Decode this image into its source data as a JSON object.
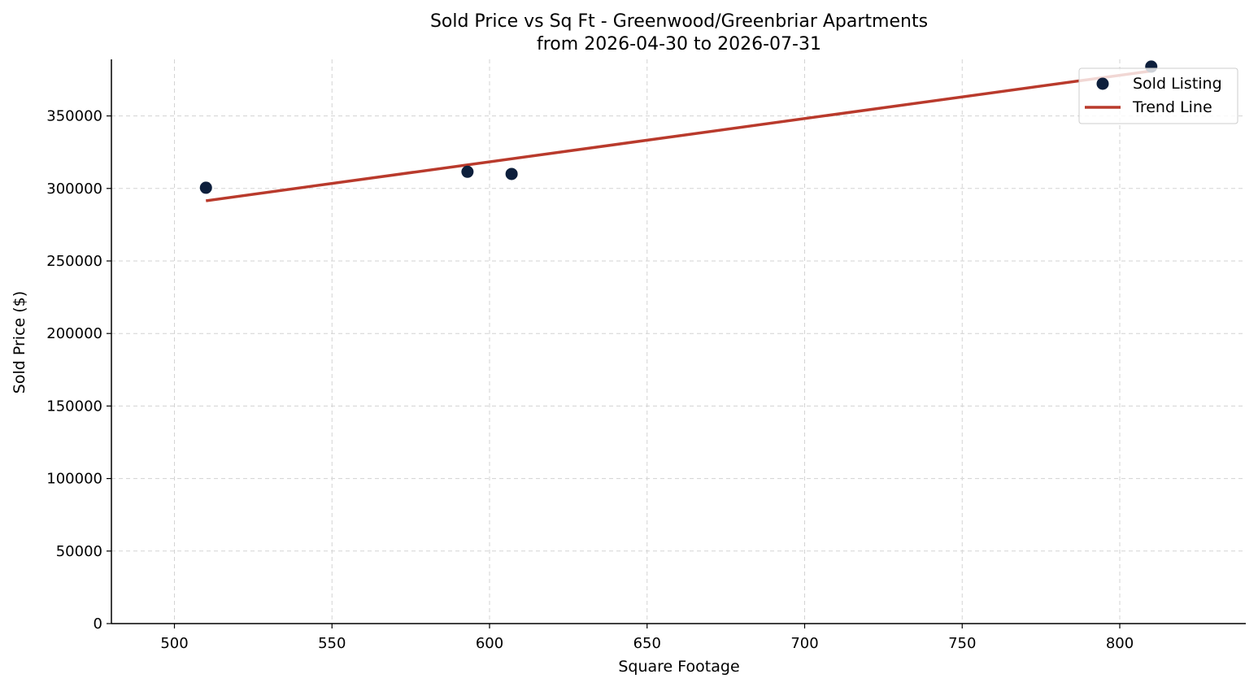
{
  "chart_data": {
    "type": "scatter",
    "title": "Sold Price vs Sq Ft - Greenwood/Greenbriar Apartments",
    "subtitle": "from 2026-04-30 to 2026-07-31",
    "xlabel": "Square Footage",
    "ylabel": "Sold Price ($)",
    "xlim": [
      480,
      840
    ],
    "ylim": [
      0,
      389000
    ],
    "x_ticks": [
      500,
      550,
      600,
      650,
      700,
      750,
      800
    ],
    "y_ticks": [
      0,
      50000,
      100000,
      150000,
      200000,
      250000,
      300000,
      350000
    ],
    "grid": true,
    "legend_position": "top-right",
    "series": [
      {
        "name": "Sold Listing",
        "kind": "scatter",
        "color": "#0d1f3c",
        "points": [
          {
            "x": 510,
            "y": 300500
          },
          {
            "x": 593,
            "y": 311500
          },
          {
            "x": 607,
            "y": 310000
          },
          {
            "x": 810,
            "y": 384000
          }
        ]
      },
      {
        "name": "Trend Line",
        "kind": "line",
        "color": "#b93a2c",
        "points": [
          {
            "x": 510,
            "y": 291500
          },
          {
            "x": 810,
            "y": 381000
          }
        ]
      }
    ]
  }
}
